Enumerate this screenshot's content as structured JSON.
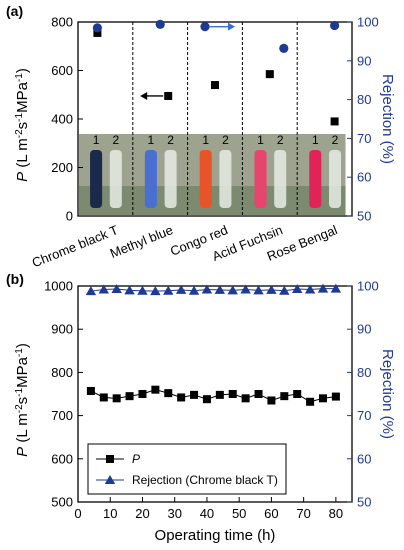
{
  "chart_data": [
    {
      "panel": "(a)",
      "type": "scatter",
      "categories": [
        "Chrome black T",
        "Methyl blue",
        "Congo red",
        "Acid Fuchsin",
        "Rose Bengal"
      ],
      "xlabel": "",
      "ylabel": "P (L m-2s-1MPa-1)",
      "ylabel_parts": [
        "P",
        " (L m",
        "-2",
        "s",
        "-1",
        "MPa",
        "-1",
        ")"
      ],
      "ylabel_right": "Rejection (%)",
      "ylim": [
        0,
        800
      ],
      "yticks": [
        0,
        200,
        400,
        600,
        800
      ],
      "ylim_right": [
        50,
        100
      ],
      "yticks_right": [
        50,
        60,
        70,
        80,
        90,
        100
      ],
      "series": [
        {
          "name": "P",
          "marker": "square",
          "color": "#000000",
          "axis": "left",
          "values": [
            755,
            495,
            540,
            585,
            390
          ]
        },
        {
          "name": "Rejection",
          "marker": "circle",
          "color": "#1f3a93",
          "axis": "right",
          "values": [
            98.5,
            99.4,
            98.8,
            93.2,
            99.1
          ]
        }
      ],
      "vial_labels": [
        "1",
        "2"
      ],
      "vial_colors": [
        "#1b2a4a",
        "#4a6fd0",
        "#e8542a",
        "#e8456e",
        "#e0245a"
      ],
      "grid": false
    },
    {
      "panel": "(b)",
      "type": "scatter",
      "x": [
        4,
        8,
        12,
        16,
        20,
        24,
        28,
        32,
        36,
        40,
        44,
        48,
        52,
        56,
        60,
        64,
        68,
        72,
        76,
        80
      ],
      "xlabel": "Operating time (h)",
      "xlim": [
        0,
        85
      ],
      "xticks": [
        0,
        10,
        20,
        30,
        40,
        50,
        60,
        70,
        80
      ],
      "ylabel": "P (L m-2s-1MPa-1)",
      "ylabel_parts": [
        "P",
        " (L m",
        "-2",
        "s",
        "-1",
        "MPa",
        "-1",
        ")"
      ],
      "ylabel_right": "Rejection (%)",
      "ylim": [
        500,
        1000
      ],
      "yticks": [
        500,
        600,
        700,
        800,
        900,
        1000
      ],
      "ylim_right": [
        50,
        100
      ],
      "yticks_right": [
        50,
        60,
        70,
        80,
        90,
        100
      ],
      "series": [
        {
          "name": "P",
          "marker": "square",
          "color": "#000000",
          "axis": "left",
          "values": [
            757,
            742,
            740,
            745,
            750,
            760,
            752,
            742,
            748,
            738,
            748,
            750,
            740,
            750,
            735,
            745,
            750,
            732,
            740,
            744
          ]
        },
        {
          "name": "Rejection (Chrome black T)",
          "marker": "triangle",
          "color": "#1f3a93",
          "axis": "right",
          "values": [
            98.8,
            99.2,
            99.3,
            99.0,
            98.9,
            98.8,
            98.9,
            99.1,
            98.9,
            99.2,
            99.1,
            99.0,
            99.2,
            99.0,
            99.1,
            98.9,
            99.3,
            99.2,
            99.4,
            99.4
          ]
        }
      ],
      "legend": {
        "placement": "bottom-left",
        "entries": [
          "P",
          "Rejection (Chrome black T)"
        ]
      },
      "grid": false
    }
  ]
}
